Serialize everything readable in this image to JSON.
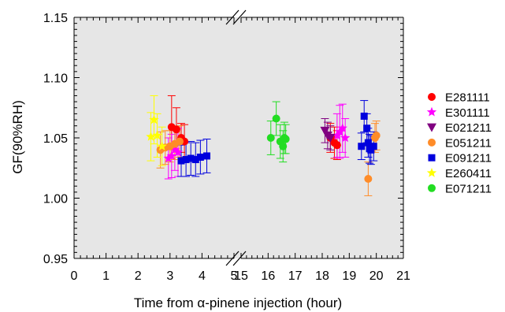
{
  "chart_data": {
    "type": "scatter",
    "title": "",
    "xlabel": "Time from α-pinene injection (hour)",
    "ylabel": "GF(90%RH)",
    "ylim": [
      0.95,
      1.15
    ],
    "yticks": [
      "0.95",
      "1.00",
      "1.05",
      "1.10",
      "1.15"
    ],
    "x_broken_axis": true,
    "x_segments": [
      {
        "range": [
          0,
          5
        ],
        "ticks": [
          "0",
          "1",
          "2",
          "3",
          "4",
          "5"
        ]
      },
      {
        "range": [
          15,
          21
        ],
        "ticks": [
          "15",
          "16",
          "17",
          "18",
          "19",
          "20",
          "21"
        ]
      }
    ],
    "legend_position": "right",
    "grid": false,
    "series": [
      {
        "name": "E281111",
        "color": "#ff0000",
        "marker": "circle",
        "points": [
          {
            "x": 3.05,
            "y": 1.059,
            "err": 0.026
          },
          {
            "x": 3.2,
            "y": 1.057,
            "err": 0.018
          },
          {
            "x": 3.35,
            "y": 1.05,
            "err": 0.012
          },
          {
            "x": 3.45,
            "y": 1.047,
            "err": 0.014
          },
          {
            "x": 18.3,
            "y": 1.05,
            "err": 0.012
          },
          {
            "x": 18.45,
            "y": 1.046,
            "err": 0.013
          },
          {
            "x": 18.55,
            "y": 1.044,
            "err": 0.012
          }
        ]
      },
      {
        "name": "E301111",
        "color": "#ff00ff",
        "marker": "star",
        "points": [
          {
            "x": 2.95,
            "y": 1.033,
            "err": 0.017
          },
          {
            "x": 3.05,
            "y": 1.035,
            "err": 0.018
          },
          {
            "x": 3.15,
            "y": 1.04,
            "err": 0.017
          },
          {
            "x": 3.25,
            "y": 1.038,
            "err": 0.02
          },
          {
            "x": 18.55,
            "y": 1.052,
            "err": 0.018
          },
          {
            "x": 18.65,
            "y": 1.055,
            "err": 0.022
          },
          {
            "x": 18.75,
            "y": 1.058,
            "err": 0.02
          },
          {
            "x": 18.85,
            "y": 1.05,
            "err": 0.016
          }
        ]
      },
      {
        "name": "E021211",
        "color": "#800080",
        "marker": "triangle-down",
        "points": [
          {
            "x": 18.1,
            "y": 1.056,
            "err": 0.01
          },
          {
            "x": 18.2,
            "y": 1.052,
            "err": 0.011
          },
          {
            "x": 18.3,
            "y": 1.05,
            "err": 0.01
          }
        ]
      },
      {
        "name": "E051211",
        "color": "#ff8c28",
        "marker": "circle",
        "points": [
          {
            "x": 2.7,
            "y": 1.04,
            "err": 0.015
          },
          {
            "x": 2.85,
            "y": 1.042,
            "err": 0.014
          },
          {
            "x": 3.0,
            "y": 1.043,
            "err": 0.013
          },
          {
            "x": 3.15,
            "y": 1.045,
            "err": 0.013
          },
          {
            "x": 3.3,
            "y": 1.047,
            "err": 0.013
          },
          {
            "x": 19.7,
            "y": 1.016,
            "err": 0.014
          },
          {
            "x": 19.95,
            "y": 1.05,
            "err": 0.012
          },
          {
            "x": 20.0,
            "y": 1.052,
            "err": 0.012
          }
        ]
      },
      {
        "name": "E091211",
        "color": "#0000dd",
        "marker": "square",
        "points": [
          {
            "x": 3.35,
            "y": 1.031,
            "err": 0.013
          },
          {
            "x": 3.5,
            "y": 1.032,
            "err": 0.014
          },
          {
            "x": 3.65,
            "y": 1.033,
            "err": 0.014
          },
          {
            "x": 3.8,
            "y": 1.032,
            "err": 0.014
          },
          {
            "x": 3.95,
            "y": 1.034,
            "err": 0.014
          },
          {
            "x": 4.15,
            "y": 1.035,
            "err": 0.014
          },
          {
            "x": 19.45,
            "y": 1.043,
            "err": 0.011
          },
          {
            "x": 19.55,
            "y": 1.068,
            "err": 0.013
          },
          {
            "x": 19.65,
            "y": 1.058,
            "err": 0.012
          },
          {
            "x": 19.7,
            "y": 1.046,
            "err": 0.012
          },
          {
            "x": 19.75,
            "y": 1.041,
            "err": 0.012
          },
          {
            "x": 19.8,
            "y": 1.04,
            "err": 0.012
          },
          {
            "x": 19.9,
            "y": 1.043,
            "err": 0.012
          }
        ]
      },
      {
        "name": "E260411",
        "color": "#ffff00",
        "marker": "star",
        "points": [
          {
            "x": 2.4,
            "y": 1.051,
            "err": 0.02
          },
          {
            "x": 2.5,
            "y": 1.065,
            "err": 0.02
          },
          {
            "x": 2.6,
            "y": 1.052,
            "err": 0.018
          },
          {
            "x": 2.75,
            "y": 1.043,
            "err": 0.016
          }
        ]
      },
      {
        "name": "E071211",
        "color": "#22dd22",
        "marker": "circle",
        "points": [
          {
            "x": 16.1,
            "y": 1.05,
            "err": 0.014
          },
          {
            "x": 16.3,
            "y": 1.066,
            "err": 0.014
          },
          {
            "x": 16.45,
            "y": 1.047,
            "err": 0.014
          },
          {
            "x": 16.55,
            "y": 1.043,
            "err": 0.013
          },
          {
            "x": 16.6,
            "y": 1.05,
            "err": 0.013
          },
          {
            "x": 16.65,
            "y": 1.049,
            "err": 0.012
          }
        ]
      }
    ]
  }
}
